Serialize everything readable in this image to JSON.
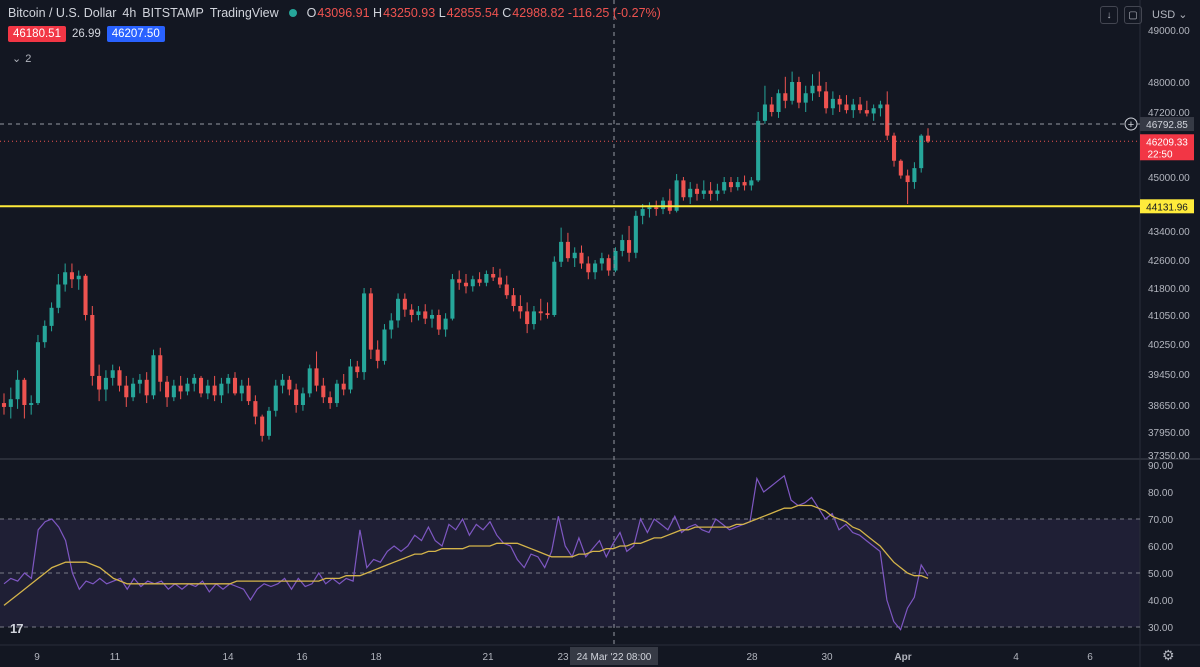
{
  "header": {
    "symbol": "Bitcoin / U.S. Dollar",
    "interval": "4h",
    "exchange": "BITSTAMP",
    "source": "TradingView",
    "ohlc": {
      "o_label": "O",
      "o": "43096.91",
      "h_label": "H",
      "h": "43250.93",
      "l_label": "L",
      "l": "42855.54",
      "c_label": "C",
      "c": "42988.82",
      "change": "-116.25 (-0.27%)"
    },
    "bid": "46180.51",
    "spread": "26.99",
    "ask": "46207.50",
    "collapsed_count": "2",
    "currency": "USD"
  },
  "colors": {
    "up": "#26a69a",
    "down": "#ef5350",
    "support": "#ffeb3b",
    "rsi": "#7e57c2",
    "rsi_ma": "#d4b44a",
    "bg": "#131722"
  },
  "chart_data": [
    {
      "type": "candlestick",
      "title": "Bitcoin / U.S. Dollar",
      "y_ticks": [
        49000,
        48000,
        47200,
        45000,
        43400,
        42600,
        41800,
        41050,
        40250,
        39450,
        38650,
        37950,
        37350
      ],
      "ylim": [
        37350,
        49400
      ],
      "x_ticks": [
        "9",
        "11",
        "14",
        "16",
        "18",
        "21",
        "23",
        "28",
        "30",
        "Apr",
        "4",
        "6"
      ],
      "crosshair_label": "24 Mar '22   08:00",
      "lines": [
        {
          "name": "support",
          "value": 44131.96,
          "label": "44131.96",
          "style": "solid"
        },
        {
          "name": "crosshair",
          "value": 46792.85,
          "label": "46792.85",
          "style": "dashed"
        },
        {
          "name": "last",
          "value": 46209.33,
          "label": "46209.33",
          "countdown": "22:50",
          "style": "dotted"
        }
      ],
      "candles_ohlc": [
        [
          38700,
          38950,
          38400,
          38600
        ],
        [
          38600,
          39100,
          38300,
          38800
        ],
        [
          38800,
          39550,
          38550,
          39300
        ],
        [
          39300,
          39350,
          38300,
          38650
        ],
        [
          38650,
          38900,
          38400,
          38700
        ],
        [
          38700,
          40500,
          38650,
          40300
        ],
        [
          40300,
          40900,
          40150,
          40750
        ],
        [
          40750,
          41400,
          40600,
          41250
        ],
        [
          41250,
          42200,
          41100,
          41900
        ],
        [
          41900,
          42500,
          41700,
          42250
        ],
        [
          42250,
          42500,
          41800,
          42050
        ],
        [
          42050,
          42300,
          41750,
          42150
        ],
        [
          42150,
          42200,
          40900,
          41050
        ],
        [
          41050,
          41300,
          39150,
          39400
        ],
        [
          39400,
          39700,
          38750,
          39050
        ],
        [
          39050,
          39550,
          38750,
          39350
        ],
        [
          39350,
          39700,
          39150,
          39550
        ],
        [
          39550,
          39650,
          39000,
          39150
        ],
        [
          39150,
          39400,
          38600,
          38850
        ],
        [
          38850,
          39350,
          38750,
          39200
        ],
        [
          39200,
          39450,
          38950,
          39300
        ],
        [
          39300,
          39500,
          38700,
          38900
        ],
        [
          38900,
          40100,
          38800,
          39950
        ],
        [
          39950,
          40150,
          39000,
          39250
        ],
        [
          39250,
          39400,
          38600,
          38850
        ],
        [
          38850,
          39300,
          38750,
          39150
        ],
        [
          39150,
          39400,
          38800,
          39000
        ],
        [
          39000,
          39350,
          38900,
          39200
        ],
        [
          39200,
          39450,
          39000,
          39350
        ],
        [
          39350,
          39400,
          38850,
          38950
        ],
        [
          38950,
          39300,
          38800,
          39150
        ],
        [
          39150,
          39400,
          38750,
          38900
        ],
        [
          38900,
          39350,
          38700,
          39200
        ],
        [
          39200,
          39450,
          38950,
          39350
        ],
        [
          39350,
          39500,
          38900,
          38950
        ],
        [
          38950,
          39300,
          38750,
          39150
        ],
        [
          39150,
          39350,
          38650,
          38750
        ],
        [
          38750,
          38900,
          38150,
          38350
        ],
        [
          38350,
          38400,
          37700,
          37850
        ],
        [
          37850,
          38600,
          37750,
          38500
        ],
        [
          38500,
          39300,
          38350,
          39150
        ],
        [
          39150,
          39450,
          38950,
          39300
        ],
        [
          39300,
          39400,
          38900,
          39050
        ],
        [
          39050,
          39200,
          38450,
          38650
        ],
        [
          38650,
          39100,
          38500,
          38950
        ],
        [
          38950,
          39700,
          38850,
          39600
        ],
        [
          39600,
          40050,
          39000,
          39150
        ],
        [
          39150,
          39350,
          38700,
          38850
        ],
        [
          38850,
          39000,
          38550,
          38700
        ],
        [
          38700,
          39300,
          38600,
          39200
        ],
        [
          39200,
          39450,
          38900,
          39050
        ],
        [
          39050,
          39850,
          38950,
          39650
        ],
        [
          39650,
          39800,
          39350,
          39500
        ],
        [
          39500,
          41800,
          39300,
          41650
        ],
        [
          41650,
          41800,
          39850,
          40100
        ],
        [
          40100,
          40350,
          39600,
          39800
        ],
        [
          39800,
          40800,
          39700,
          40650
        ],
        [
          40650,
          41100,
          40400,
          40900
        ],
        [
          40900,
          41650,
          40700,
          41500
        ],
        [
          41500,
          41650,
          41000,
          41200
        ],
        [
          41200,
          41350,
          40850,
          41050
        ],
        [
          41050,
          41300,
          40900,
          41150
        ],
        [
          41150,
          41350,
          40800,
          40950
        ],
        [
          40950,
          41200,
          40700,
          41050
        ],
        [
          41050,
          41200,
          40500,
          40650
        ],
        [
          40650,
          41100,
          40450,
          40950
        ],
        [
          40950,
          42200,
          40900,
          42050
        ],
        [
          42050,
          42300,
          41750,
          41950
        ],
        [
          41950,
          42200,
          41650,
          41850
        ],
        [
          41850,
          42150,
          41700,
          42050
        ],
        [
          42050,
          42250,
          41850,
          41950
        ],
        [
          41950,
          42300,
          41850,
          42200
        ],
        [
          42200,
          42400,
          42000,
          42100
        ],
        [
          42100,
          42350,
          41800,
          41900
        ],
        [
          41900,
          42150,
          41500,
          41600
        ],
        [
          41600,
          41800,
          41150,
          41300
        ],
        [
          41300,
          41600,
          40950,
          41150
        ],
        [
          41150,
          41400,
          40550,
          40800
        ],
        [
          40800,
          41300,
          40650,
          41150
        ],
        [
          41150,
          41500,
          40900,
          41100
        ],
        [
          41100,
          41400,
          40950,
          41050
        ],
        [
          41050,
          42700,
          41000,
          42550
        ],
        [
          42550,
          43500,
          42400,
          43100
        ],
        [
          43100,
          43350,
          42550,
          42650
        ],
        [
          42650,
          42950,
          42400,
          42800
        ],
        [
          42800,
          43000,
          42350,
          42500
        ],
        [
          42500,
          42700,
          42050,
          42250
        ],
        [
          42250,
          42600,
          42050,
          42500
        ],
        [
          42500,
          42800,
          42300,
          42650
        ],
        [
          42650,
          42750,
          42150,
          42300
        ],
        [
          42300,
          42950,
          42250,
          42850
        ],
        [
          42850,
          43300,
          42700,
          43150
        ],
        [
          43150,
          43550,
          42550,
          42800
        ],
        [
          42800,
          44000,
          42650,
          43850
        ],
        [
          43850,
          44200,
          43600,
          44050
        ],
        [
          44050,
          44250,
          43800,
          44100
        ],
        [
          44100,
          44300,
          43850,
          44050
        ],
        [
          44050,
          44400,
          43900,
          44300
        ],
        [
          44300,
          44650,
          43900,
          44000
        ],
        [
          44000,
          45100,
          43950,
          44900
        ],
        [
          44900,
          45000,
          44300,
          44400
        ],
        [
          44400,
          44850,
          44200,
          44650
        ],
        [
          44650,
          44800,
          44300,
          44500
        ],
        [
          44500,
          44900,
          44350,
          44600
        ],
        [
          44600,
          44850,
          44300,
          44500
        ],
        [
          44500,
          44800,
          44300,
          44600
        ],
        [
          44600,
          45000,
          44500,
          44850
        ],
        [
          44850,
          45000,
          44550,
          44700
        ],
        [
          44700,
          45000,
          44600,
          44850
        ],
        [
          44850,
          45050,
          44600,
          44750
        ],
        [
          44750,
          45000,
          44600,
          44900
        ],
        [
          44900,
          47200,
          44850,
          46900
        ],
        [
          46900,
          47900,
          46800,
          47400
        ],
        [
          47400,
          47600,
          47050,
          47200
        ],
        [
          47200,
          47800,
          47000,
          47700
        ],
        [
          47700,
          48100,
          47300,
          47500
        ],
        [
          47500,
          48200,
          47400,
          48000
        ],
        [
          48000,
          48100,
          47300,
          47450
        ],
        [
          47450,
          47900,
          47200,
          47700
        ],
        [
          47700,
          48150,
          47500,
          47900
        ],
        [
          47900,
          48200,
          47600,
          47750
        ],
        [
          47750,
          48000,
          47150,
          47300
        ],
        [
          47300,
          47750,
          47100,
          47550
        ],
        [
          47550,
          47650,
          47200,
          47400
        ],
        [
          47400,
          47650,
          47150,
          47250
        ],
        [
          47250,
          47550,
          47000,
          47400
        ],
        [
          47400,
          47600,
          47150,
          47250
        ],
        [
          47250,
          47500,
          47050,
          47150
        ],
        [
          47150,
          47400,
          46900,
          47300
        ],
        [
          47300,
          47500,
          47050,
          47400
        ],
        [
          47400,
          47750,
          46250,
          46400
        ],
        [
          46400,
          46500,
          45350,
          45550
        ],
        [
          45550,
          45600,
          44950,
          45050
        ],
        [
          45050,
          45250,
          44200,
          44850
        ],
        [
          44850,
          45500,
          44650,
          45300
        ],
        [
          45300,
          46450,
          45150,
          46400
        ],
        [
          46400,
          46650,
          46150,
          46200
        ]
      ]
    },
    {
      "type": "line",
      "title": "RSI",
      "y_ticks": [
        90,
        80,
        70,
        60,
        50,
        40,
        30
      ],
      "ylim": [
        26,
        92
      ],
      "levels": [
        70,
        50,
        30
      ],
      "series": [
        {
          "values": [
            46,
            48,
            47,
            50,
            48,
            66,
            69,
            70,
            67,
            62,
            50,
            44,
            47,
            46,
            48,
            46,
            47,
            48,
            44,
            48,
            45,
            47,
            46,
            47,
            44,
            46,
            44,
            46,
            45,
            47,
            43,
            46,
            44,
            46,
            45,
            44,
            40,
            44,
            46,
            45,
            46,
            48,
            44,
            48,
            45,
            46,
            50,
            46,
            48,
            46,
            48,
            47,
            66,
            52,
            55,
            54,
            58,
            60,
            58,
            60,
            64,
            62,
            67,
            62,
            60,
            68,
            66,
            70,
            64,
            68,
            66,
            69,
            64,
            61,
            60,
            55,
            52,
            57,
            56,
            52,
            58,
            71,
            60,
            56,
            63,
            56,
            59,
            62,
            56,
            61,
            65,
            58,
            60,
            70,
            65,
            70,
            68,
            66,
            71,
            65,
            67,
            68,
            66,
            65,
            70,
            68,
            66,
            67,
            68,
            69,
            85,
            80,
            82,
            84,
            86,
            77,
            75,
            76,
            78,
            74,
            70,
            72,
            66,
            68,
            65,
            64,
            62,
            60,
            58,
            40,
            32,
            29,
            37,
            41,
            53,
            49
          ]
        },
        {
          "values": [
            38,
            40,
            42,
            44,
            46,
            48,
            50,
            52,
            53,
            54,
            54,
            54,
            54,
            53,
            52,
            50,
            48,
            47,
            46,
            46,
            46,
            46,
            46,
            46,
            46,
            46,
            46,
            46,
            46,
            46,
            46,
            46,
            46,
            46,
            47,
            47,
            47,
            47,
            47,
            47,
            47,
            47,
            47,
            47,
            47,
            47,
            47,
            48,
            48,
            48,
            49,
            49,
            49,
            50,
            51,
            52,
            53,
            54,
            55,
            56,
            57,
            57,
            58,
            58,
            59,
            59,
            59,
            59,
            60,
            60,
            60,
            60,
            61,
            61,
            61,
            61,
            60,
            59,
            58,
            57,
            56,
            56,
            56,
            56,
            57,
            57,
            58,
            58,
            59,
            59,
            60,
            60,
            61,
            61,
            62,
            63,
            63,
            64,
            65,
            66,
            66,
            67,
            67,
            67,
            67,
            67,
            67,
            68,
            68,
            69,
            70,
            71,
            72,
            73,
            74,
            74,
            75,
            75,
            75,
            74,
            73,
            71,
            70,
            69,
            67,
            66,
            64,
            62,
            60,
            57,
            54,
            52,
            50,
            49,
            49,
            48
          ]
        }
      ]
    }
  ]
}
